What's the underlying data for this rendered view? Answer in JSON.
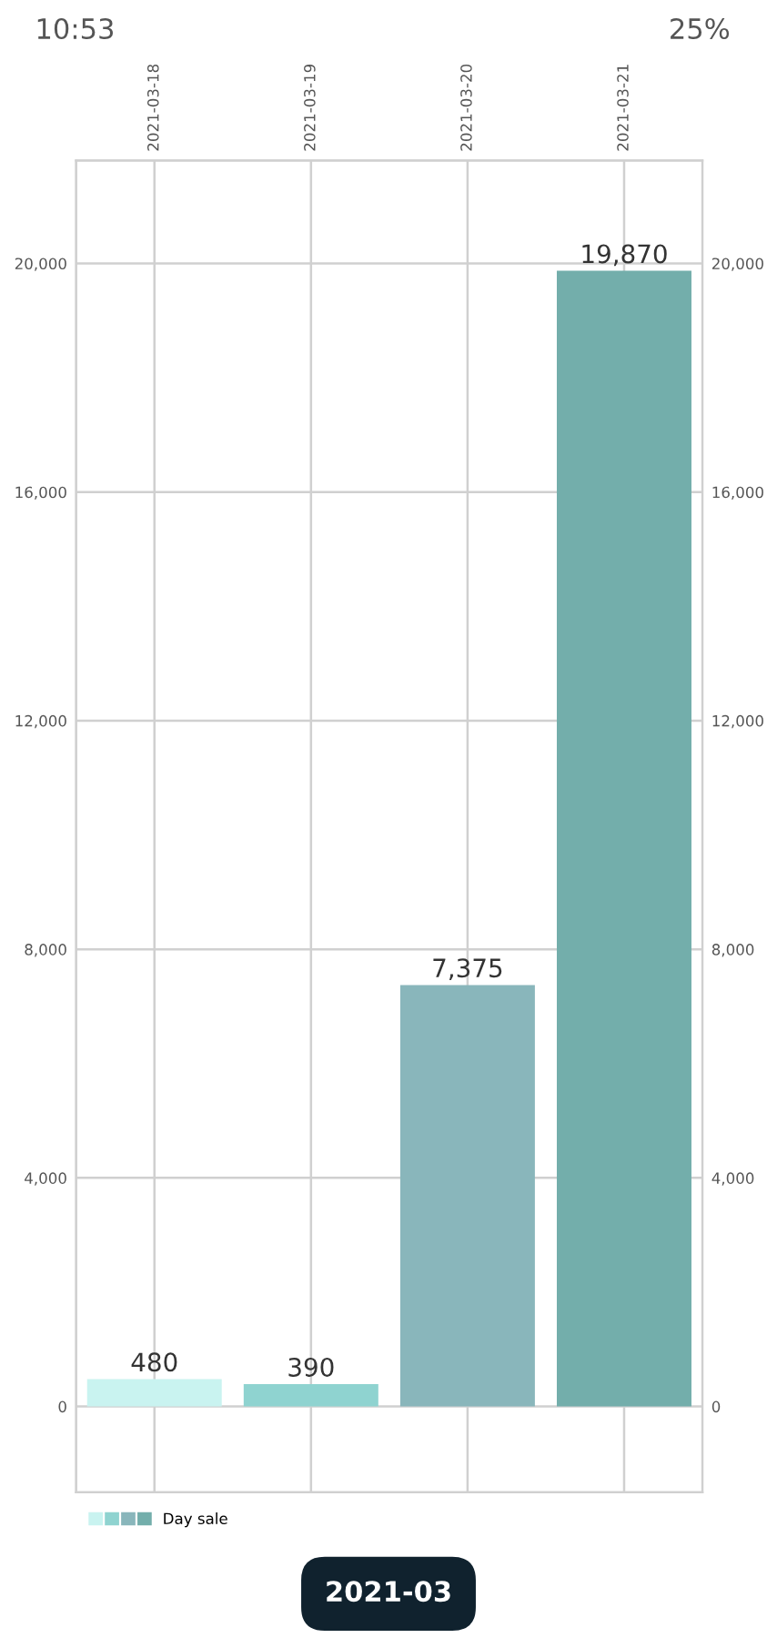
{
  "chart_data": {
    "type": "bar",
    "categories": [
      "2021-03-18",
      "2021-03-19",
      "2021-03-20",
      "2021-03-21"
    ],
    "series": [
      {
        "name": "Day sale",
        "colors": [
          "#c9f3f0",
          "#8fd3d0",
          "#89b6bb",
          "#73aeab"
        ],
        "values": [
          480,
          390,
          7375,
          19870
        ],
        "value_labels": [
          "480",
          "390",
          "7,375",
          "19,870"
        ]
      }
    ],
    "ylim": [
      -1500,
      21800
    ],
    "yticks": [
      0,
      {
        "value": 4000,
        "label": "4,000"
      },
      {
        "value": 8000,
        "label": "8,000"
      },
      {
        "value": 12000,
        "label": "12,000"
      },
      {
        "value": 16000,
        "label": "16,000"
      },
      {
        "value": 20000,
        "label": "20,000"
      }
    ],
    "y2lim": [
      -1500,
      21800
    ],
    "y2ticks": [
      0,
      {
        "value": 4000,
        "label": "4,000"
      },
      {
        "value": 8000,
        "label": "8,000"
      },
      {
        "value": 12000,
        "label": "12,000"
      },
      {
        "value": 16000,
        "label": "16,000"
      },
      {
        "value": 20000,
        "label": "20,000"
      }
    ],
    "grid": true,
    "legend": "bottom left",
    "annotations": [
      "10:53",
      "25%",
      "2021-03"
    ]
  }
}
